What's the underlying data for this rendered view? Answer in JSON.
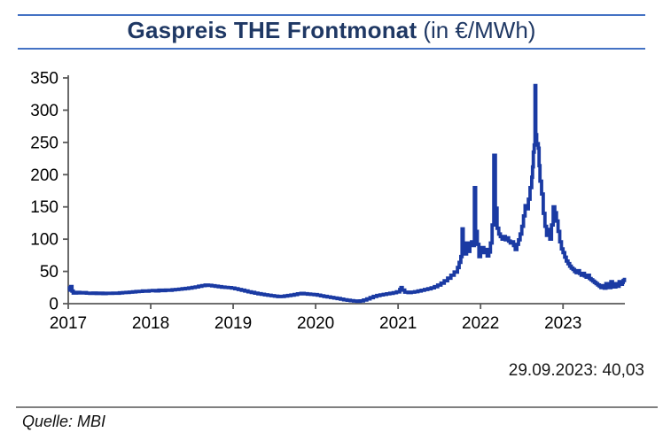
{
  "title": {
    "main": "Gaspreis THE Frontmonat",
    "unit": "(in €/MWh)"
  },
  "annotation": {
    "last_value": "29.09.2023: 40,03"
  },
  "source": {
    "text": "Quelle: MBI"
  },
  "colors": {
    "title_text": "#1F3864",
    "title_rule": "#4472C4",
    "line": "#1A3AA3",
    "axis": "#595959",
    "tick_label": "#000000",
    "divider": "#7f7f7f"
  },
  "chart_data": {
    "type": "line",
    "title": "Gaspreis THE Frontmonat",
    "unit_label": "(in €/MWh)",
    "xlabel": "",
    "ylabel": "€/MWh",
    "xlim": [
      2017,
      2023.75
    ],
    "ylim": [
      0,
      350
    ],
    "y_ticks": [
      0,
      50,
      100,
      150,
      200,
      250,
      300,
      350
    ],
    "x_ticks": [
      2017,
      2018,
      2019,
      2020,
      2021,
      2022,
      2023
    ],
    "grid": false,
    "legend": false,
    "last_point": {
      "date": "29.09.2023",
      "value": 40.03
    },
    "series": [
      {
        "name": "THE Frontmonat",
        "color": "#1A3AA3",
        "points": [
          [
            2017.0,
            21
          ],
          [
            2017.015,
            24.5
          ],
          [
            2017.03,
            26.5
          ],
          [
            2017.045,
            19.5
          ],
          [
            2017.06,
            16.5
          ],
          [
            2017.1,
            17.4
          ],
          [
            2017.14,
            16.6
          ],
          [
            2017.18,
            17.1
          ],
          [
            2017.22,
            16.3
          ],
          [
            2017.26,
            16.0
          ],
          [
            2017.3,
            16.5
          ],
          [
            2017.34,
            15.8
          ],
          [
            2017.38,
            16.2
          ],
          [
            2017.42,
            15.7
          ],
          [
            2017.46,
            16.1
          ],
          [
            2017.5,
            15.9
          ],
          [
            2017.54,
            16.4
          ],
          [
            2017.58,
            16.2
          ],
          [
            2017.62,
            16.8
          ],
          [
            2017.66,
            17.1
          ],
          [
            2017.7,
            17.5
          ],
          [
            2017.74,
            17.9
          ],
          [
            2017.78,
            18.3
          ],
          [
            2017.82,
            18.8
          ],
          [
            2017.86,
            19.1
          ],
          [
            2017.9,
            19.7
          ],
          [
            2017.94,
            19.4
          ],
          [
            2017.98,
            20.0
          ],
          [
            2018.02,
            20.4
          ],
          [
            2018.06,
            19.7
          ],
          [
            2018.1,
            20.9
          ],
          [
            2018.14,
            20.3
          ],
          [
            2018.18,
            21.2
          ],
          [
            2018.22,
            20.8
          ],
          [
            2018.26,
            21.5
          ],
          [
            2018.3,
            22.0
          ],
          [
            2018.34,
            22.5
          ],
          [
            2018.38,
            23.0
          ],
          [
            2018.42,
            23.6
          ],
          [
            2018.46,
            24.3
          ],
          [
            2018.5,
            25.1
          ],
          [
            2018.54,
            26.0
          ],
          [
            2018.58,
            27.0
          ],
          [
            2018.62,
            28.0
          ],
          [
            2018.66,
            28.8
          ],
          [
            2018.7,
            28.4
          ],
          [
            2018.74,
            27.7
          ],
          [
            2018.78,
            27.0
          ],
          [
            2018.82,
            26.3
          ],
          [
            2018.86,
            25.7
          ],
          [
            2018.9,
            25.2
          ],
          [
            2018.94,
            24.8
          ],
          [
            2018.98,
            24.2
          ],
          [
            2019.02,
            23.2
          ],
          [
            2019.06,
            22.0
          ],
          [
            2019.1,
            20.8
          ],
          [
            2019.14,
            19.6
          ],
          [
            2019.18,
            18.4
          ],
          [
            2019.22,
            17.4
          ],
          [
            2019.26,
            16.4
          ],
          [
            2019.3,
            15.4
          ],
          [
            2019.34,
            14.5
          ],
          [
            2019.38,
            13.7
          ],
          [
            2019.42,
            13.0
          ],
          [
            2019.46,
            12.3
          ],
          [
            2019.5,
            11.6
          ],
          [
            2019.54,
            11.0
          ],
          [
            2019.58,
            11.3
          ],
          [
            2019.62,
            12.0
          ],
          [
            2019.66,
            12.6
          ],
          [
            2019.7,
            13.3
          ],
          [
            2019.74,
            14.2
          ],
          [
            2019.78,
            15.2
          ],
          [
            2019.82,
            15.9
          ],
          [
            2019.86,
            15.4
          ],
          [
            2019.9,
            14.8
          ],
          [
            2019.94,
            14.4
          ],
          [
            2019.98,
            14.0
          ],
          [
            2020.02,
            13.2
          ],
          [
            2020.06,
            12.2
          ],
          [
            2020.1,
            11.2
          ],
          [
            2020.14,
            10.4
          ],
          [
            2020.18,
            9.6
          ],
          [
            2020.22,
            8.8
          ],
          [
            2020.26,
            7.9
          ],
          [
            2020.3,
            7.0
          ],
          [
            2020.34,
            6.1
          ],
          [
            2020.38,
            5.3
          ],
          [
            2020.42,
            4.7
          ],
          [
            2020.46,
            4.1
          ],
          [
            2020.5,
            3.5
          ],
          [
            2020.54,
            4.2
          ],
          [
            2020.58,
            5.6
          ],
          [
            2020.62,
            7.4
          ],
          [
            2020.66,
            9.4
          ],
          [
            2020.7,
            11.2
          ],
          [
            2020.74,
            12.6
          ],
          [
            2020.78,
            13.6
          ],
          [
            2020.82,
            14.4
          ],
          [
            2020.86,
            15.2
          ],
          [
            2020.9,
            16.0
          ],
          [
            2020.94,
            17.0
          ],
          [
            2020.98,
            18.2
          ],
          [
            2021.02,
            22.0
          ],
          [
            2021.035,
            25.0
          ],
          [
            2021.05,
            21.0
          ],
          [
            2021.08,
            17.8
          ],
          [
            2021.12,
            17.2
          ],
          [
            2021.16,
            17.9
          ],
          [
            2021.2,
            18.5
          ],
          [
            2021.24,
            19.6
          ],
          [
            2021.28,
            20.7
          ],
          [
            2021.32,
            21.9
          ],
          [
            2021.36,
            23.1
          ],
          [
            2021.4,
            24.5
          ],
          [
            2021.44,
            26.3
          ],
          [
            2021.48,
            28.8
          ],
          [
            2021.52,
            31.8
          ],
          [
            2021.56,
            35.5
          ],
          [
            2021.6,
            39.5
          ],
          [
            2021.64,
            44.0
          ],
          [
            2021.68,
            49.0
          ],
          [
            2021.72,
            56.0
          ],
          [
            2021.74,
            64.0
          ],
          [
            2021.76,
            73.0
          ],
          [
            2021.775,
            116.0
          ],
          [
            2021.79,
            87.0
          ],
          [
            2021.81,
            77.0
          ],
          [
            2021.83,
            94.0
          ],
          [
            2021.85,
            81.0
          ],
          [
            2021.87,
            91.0
          ],
          [
            2021.89,
            96.0
          ],
          [
            2021.91,
            90.0
          ],
          [
            2021.925,
            180.0
          ],
          [
            2021.94,
            112.0
          ],
          [
            2021.96,
            92.0
          ],
          [
            2021.98,
            73.0
          ],
          [
            2022.0,
            81
          ],
          [
            2022.02,
            87
          ],
          [
            2022.04,
            79
          ],
          [
            2022.06,
            84
          ],
          [
            2022.08,
            74
          ],
          [
            2022.1,
            80
          ],
          [
            2022.12,
            94
          ],
          [
            2022.14,
            122
          ],
          [
            2022.16,
            230
          ],
          [
            2022.18,
            148
          ],
          [
            2022.2,
            117
          ],
          [
            2022.22,
            108
          ],
          [
            2022.24,
            104
          ],
          [
            2022.26,
            100
          ],
          [
            2022.28,
            104
          ],
          [
            2022.3,
            99
          ],
          [
            2022.32,
            102
          ],
          [
            2022.34,
            97
          ],
          [
            2022.36,
            94
          ],
          [
            2022.38,
            96
          ],
          [
            2022.4,
            90
          ],
          [
            2022.42,
            84
          ],
          [
            2022.44,
            92
          ],
          [
            2022.46,
            99
          ],
          [
            2022.48,
            108
          ],
          [
            2022.5,
            120
          ],
          [
            2022.52,
            136
          ],
          [
            2022.54,
            152
          ],
          [
            2022.56,
            147
          ],
          [
            2022.58,
            162
          ],
          [
            2022.6,
            180
          ],
          [
            2022.62,
            196
          ],
          [
            2022.63,
            212
          ],
          [
            2022.64,
            235
          ],
          [
            2022.65,
            246
          ],
          [
            2022.66,
            338
          ],
          [
            2022.67,
            262
          ],
          [
            2022.68,
            248
          ],
          [
            2022.7,
            241
          ],
          [
            2022.71,
            214
          ],
          [
            2022.72,
            190
          ],
          [
            2022.74,
            170
          ],
          [
            2022.76,
            140
          ],
          [
            2022.78,
            120
          ],
          [
            2022.8,
            106
          ],
          [
            2022.82,
            115
          ],
          [
            2022.84,
            100
          ],
          [
            2022.86,
            122
          ],
          [
            2022.88,
            150
          ],
          [
            2022.9,
            141
          ],
          [
            2022.92,
            128
          ],
          [
            2022.94,
            112
          ],
          [
            2022.96,
            96
          ],
          [
            2022.98,
            85
          ],
          [
            2023.0,
            79
          ],
          [
            2023.02,
            72
          ],
          [
            2023.04,
            66
          ],
          [
            2023.06,
            62
          ],
          [
            2023.08,
            58
          ],
          [
            2023.1,
            55
          ],
          [
            2023.12,
            53
          ],
          [
            2023.14,
            50
          ],
          [
            2023.16,
            48
          ],
          [
            2023.18,
            51
          ],
          [
            2023.2,
            47
          ],
          [
            2023.22,
            44
          ],
          [
            2023.24,
            47
          ],
          [
            2023.26,
            43
          ],
          [
            2023.28,
            41
          ],
          [
            2023.3,
            44
          ],
          [
            2023.32,
            39
          ],
          [
            2023.34,
            37
          ],
          [
            2023.36,
            35
          ],
          [
            2023.38,
            33
          ],
          [
            2023.4,
            31
          ],
          [
            2023.42,
            29
          ],
          [
            2023.44,
            27
          ],
          [
            2023.46,
            25
          ],
          [
            2023.48,
            28
          ],
          [
            2023.5,
            24
          ],
          [
            2023.52,
            31
          ],
          [
            2023.54,
            27
          ],
          [
            2023.56,
            25
          ],
          [
            2023.58,
            34
          ],
          [
            2023.6,
            29
          ],
          [
            2023.62,
            26
          ],
          [
            2023.64,
            31
          ],
          [
            2023.66,
            27
          ],
          [
            2023.68,
            34
          ],
          [
            2023.7,
            30
          ],
          [
            2023.72,
            33
          ],
          [
            2023.73,
            36
          ],
          [
            2023.745,
            40.03
          ]
        ]
      }
    ]
  }
}
